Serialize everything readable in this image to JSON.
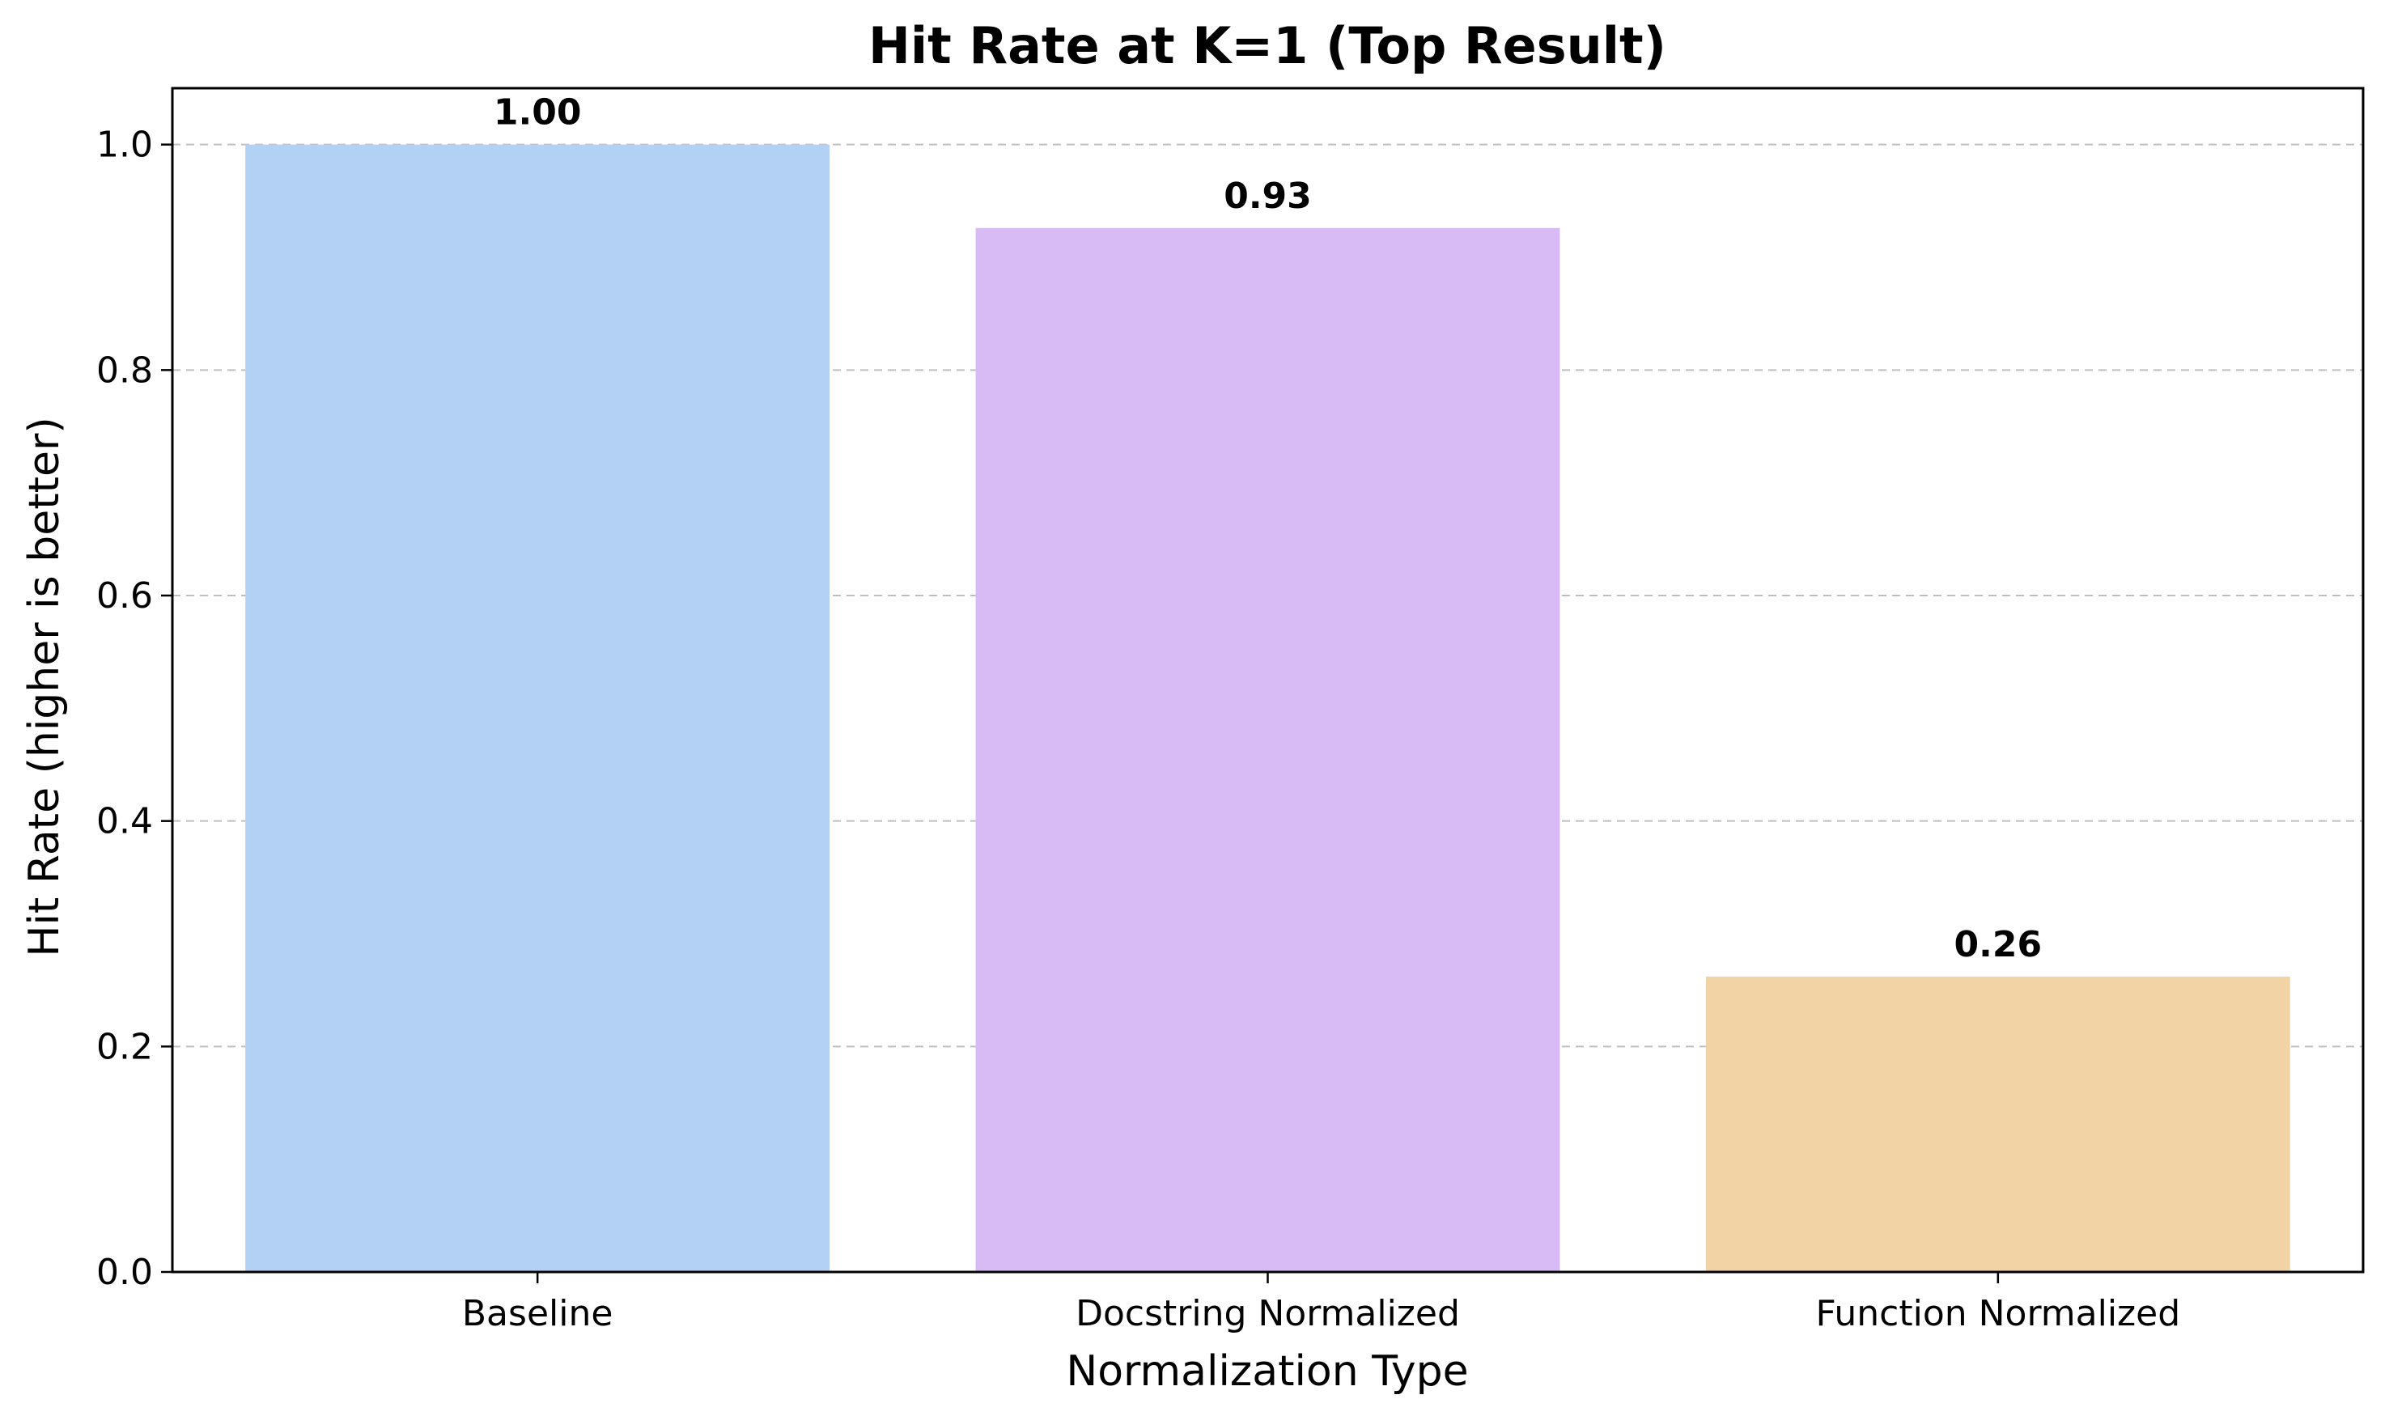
{
  "chart_data": {
    "type": "bar",
    "title": "Hit Rate at K=1 (Top Result)",
    "xlabel": "Normalization Type",
    "ylabel": "Hit Rate (higher is better)",
    "categories": [
      "Baseline",
      "Docstring Normalized",
      "Function Normalized"
    ],
    "values": [
      1.0,
      0.926,
      0.262
    ],
    "value_labels": [
      "1.00",
      "0.93",
      "0.26"
    ],
    "colors": [
      "#b3d1f4",
      "#d8baf4",
      "#f2d3a6"
    ],
    "ylim": [
      0,
      1.05
    ],
    "yticks": [
      0.0,
      0.2,
      0.4,
      0.6,
      0.8,
      1.0
    ],
    "ytick_labels": [
      "0.0",
      "0.2",
      "0.4",
      "0.6",
      "0.8",
      "1.0"
    ],
    "grid": "y-dashed",
    "legend": "none"
  }
}
